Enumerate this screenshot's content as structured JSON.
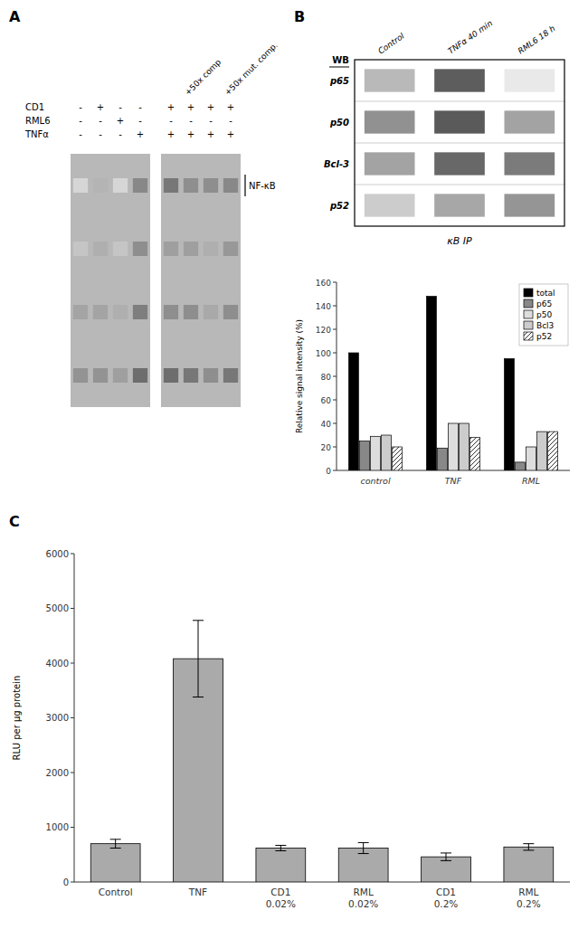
{
  "chart_data": [
    {
      "type": "heatmap",
      "title": "A",
      "x": [
        null,
        null,
        null,
        null,
        null,
        null,
        null,
        null
      ],
      "y": [
        "NF-κB",
        null,
        null,
        null
      ],
      "values": [
        [
          0.25,
          0.45,
          0.25,
          0.72,
          0.82,
          0.68,
          0.68,
          0.72
        ],
        [
          0.35,
          0.48,
          0.35,
          0.68,
          0.58,
          0.58,
          0.48,
          0.62
        ],
        [
          0.55,
          0.55,
          0.48,
          0.78,
          0.68,
          0.68,
          0.52,
          0.68
        ],
        [
          0.65,
          0.65,
          0.58,
          0.88,
          0.88,
          0.82,
          0.68,
          0.82
        ]
      ],
      "conditions": [
        {
          "name": "CD1",
          "values": [
            "-",
            "+",
            "-",
            "-",
            "+",
            "+",
            "+",
            "+"
          ]
        },
        {
          "name": "RML6",
          "values": [
            "-",
            "-",
            "+",
            "-",
            "-",
            "-",
            "-",
            "-"
          ]
        },
        {
          "name": "TNFα",
          "values": [
            "-",
            "-",
            "-",
            "+",
            "+",
            "+",
            "+",
            "+"
          ]
        }
      ],
      "annotations": [
        "+50x comp",
        "+50x mut. comp."
      ]
    },
    {
      "type": "heatmap",
      "title": "B",
      "x": [
        "Control",
        "TNFα 40 min",
        "RML6 18 h"
      ],
      "y": [
        "p65",
        "p50",
        "Bcl-3",
        "p52"
      ],
      "values": [
        [
          0.38,
          0.88,
          0.12
        ],
        [
          0.6,
          0.9,
          0.5
        ],
        [
          0.5,
          0.82,
          0.72
        ],
        [
          0.28,
          0.48,
          0.58
        ]
      ],
      "xlabel": "κB IP",
      "ylabel": "WB"
    },
    {
      "type": "bar",
      "categories": [
        "control",
        "TNF",
        "RML"
      ],
      "series": [
        {
          "name": "total",
          "color": "#000000",
          "values": [
            100,
            148,
            95
          ]
        },
        {
          "name": "p65",
          "color": "#888888",
          "values": [
            25,
            19,
            7
          ]
        },
        {
          "name": "p50",
          "color": "#dddddd",
          "values": [
            29,
            40,
            20
          ]
        },
        {
          "name": "Bcl3",
          "color": "#cccccc",
          "values": [
            30,
            40,
            33
          ]
        },
        {
          "name": "p52",
          "color": "#ffffff",
          "values": [
            20,
            28,
            33
          ]
        }
      ],
      "ylim": [
        0,
        160
      ],
      "yticks": [
        0,
        20,
        40,
        60,
        80,
        100,
        120,
        140,
        160
      ],
      "ylabel": "Relative signal intensity (%)",
      "legend": "upper right",
      "grid": false
    },
    {
      "type": "bar",
      "title": "C",
      "categories": [
        "Control",
        "TNF",
        "CD1\n0.02%",
        "RML\n0.02%",
        "CD1\n0.2%",
        "RML\n0.2%"
      ],
      "values": [
        700,
        4080,
        620,
        620,
        460,
        640
      ],
      "errors": [
        80,
        700,
        50,
        100,
        70,
        60
      ],
      "color": "#aaaaaa",
      "ylim": [
        0,
        6000
      ],
      "yticks": [
        0,
        1000,
        2000,
        3000,
        4000,
        5000,
        6000
      ],
      "ylabel": "RLU per µg protein",
      "grid": false
    }
  ]
}
